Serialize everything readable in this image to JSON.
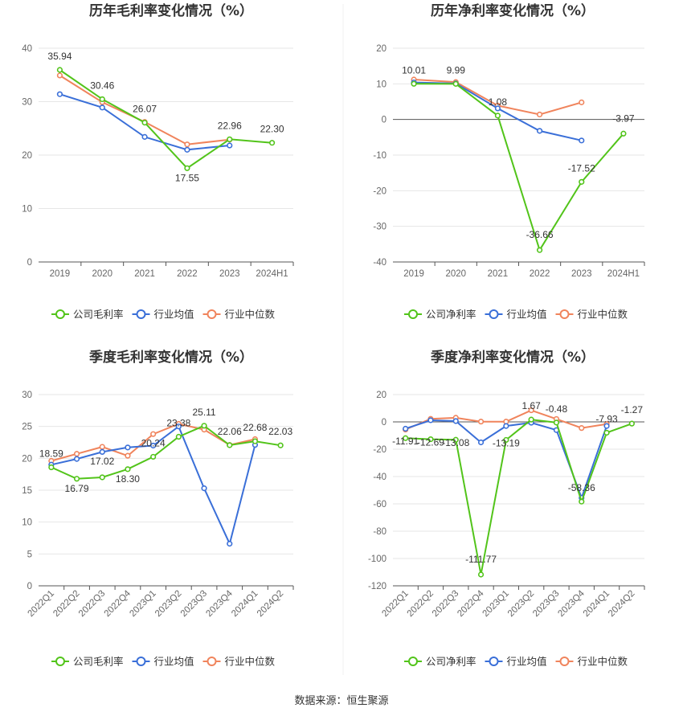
{
  "colors": {
    "company": "#52c41a",
    "industry_avg": "#3a6fd8",
    "industry_median": "#f0845c",
    "grid": "#e6e6e6",
    "axis": "#666666",
    "label": "#333333"
  },
  "legend": {
    "gross": [
      "公司毛利率",
      "行业均值",
      "行业中位数"
    ],
    "net": [
      "公司净利率",
      "行业均值",
      "行业中位数"
    ]
  },
  "source_text": "数据来源：恒生聚源",
  "chart_data": [
    {
      "type": "line",
      "title": "历年毛利率变化情况（%）",
      "categories": [
        "2019",
        "2020",
        "2021",
        "2022",
        "2023",
        "2024H1"
      ],
      "ylim": [
        0,
        40
      ],
      "yticks": [
        0,
        10,
        20,
        30,
        40
      ],
      "legend_key": "gross",
      "grid": true,
      "legend_position": "bottom",
      "series": [
        {
          "name": "公司毛利率",
          "values": [
            35.94,
            30.46,
            26.07,
            17.55,
            22.96,
            22.3
          ],
          "labels": [
            "35.94",
            "30.46",
            "26.07",
            "17.55",
            "22.96",
            "22.30"
          ]
        },
        {
          "name": "行业均值",
          "values": [
            31.4,
            28.9,
            23.4,
            21.0,
            21.8,
            null
          ]
        },
        {
          "name": "行业中位数",
          "values": [
            34.9,
            29.9,
            26.2,
            22.0,
            22.9,
            null
          ]
        }
      ]
    },
    {
      "type": "line",
      "title": "历年净利率变化情况（%）",
      "categories": [
        "2019",
        "2020",
        "2021",
        "2022",
        "2023",
        "2024H1"
      ],
      "ylim": [
        -40,
        20
      ],
      "yticks": [
        -40,
        -30,
        -20,
        -10,
        0,
        10,
        20
      ],
      "legend_key": "net",
      "grid": true,
      "legend_position": "bottom",
      "series": [
        {
          "name": "公司净利率",
          "values": [
            10.01,
            9.99,
            1.08,
            -36.66,
            -17.52,
            -3.97
          ],
          "labels": [
            "10.01",
            "9.99",
            "1.08",
            "-36.66",
            "-17.52",
            "-3.97"
          ]
        },
        {
          "name": "行业均值",
          "values": [
            10.4,
            10.1,
            3.1,
            -3.2,
            -5.9,
            null
          ]
        },
        {
          "name": "行业中位数",
          "values": [
            11.2,
            10.5,
            3.9,
            1.4,
            4.8,
            null
          ]
        }
      ]
    },
    {
      "type": "line",
      "title": "季度毛利率变化情况（%）",
      "categories": [
        "2022Q1",
        "2022Q2",
        "2022Q3",
        "2022Q4",
        "2023Q1",
        "2023Q2",
        "2023Q3",
        "2023Q4",
        "2024Q1",
        "2024Q2"
      ],
      "ylim": [
        0,
        30
      ],
      "yticks": [
        0,
        5,
        10,
        15,
        20,
        25,
        30
      ],
      "legend_key": "gross",
      "rotate_x": true,
      "grid": true,
      "legend_position": "bottom",
      "series": [
        {
          "name": "公司毛利率",
          "values": [
            18.59,
            16.79,
            17.02,
            18.3,
            20.24,
            23.38,
            25.11,
            22.06,
            22.68,
            22.03
          ],
          "labels": [
            "18.59",
            "16.79",
            "17.02",
            "18.30",
            "20.24",
            "23.38",
            "25.11",
            "22.06",
            "22.68",
            "22.03"
          ]
        },
        {
          "name": "行业均值",
          "values": [
            19.0,
            19.9,
            21.0,
            21.7,
            22.0,
            25.0,
            15.3,
            6.6,
            22.1,
            null
          ]
        },
        {
          "name": "行业中位数",
          "values": [
            19.6,
            20.7,
            21.8,
            20.4,
            23.8,
            25.4,
            24.5,
            22.1,
            23.0,
            null
          ]
        }
      ]
    },
    {
      "type": "line",
      "title": "季度净利率变化情况（%）",
      "categories": [
        "2022Q1",
        "2022Q2",
        "2022Q3",
        "2022Q4",
        "2023Q1",
        "2023Q2",
        "2023Q3",
        "2023Q4",
        "2024Q1",
        "2024Q2"
      ],
      "ylim": [
        -120,
        20
      ],
      "yticks": [
        -120,
        -100,
        -80,
        -60,
        -40,
        -20,
        0,
        20
      ],
      "legend_key": "net",
      "rotate_x": true,
      "grid": true,
      "legend_position": "bottom",
      "series": [
        {
          "name": "公司净利率",
          "values": [
            -11.91,
            -12.69,
            -13.08,
            -111.77,
            -13.19,
            1.67,
            -0.48,
            -58.36,
            -7.93,
            -1.27
          ],
          "labels": [
            "-11.91",
            "-12.69",
            "-13.08",
            "-111.77",
            "-13.19",
            "1.67",
            "-0.48",
            "-58.36",
            "-7.93",
            "-1.27"
          ]
        },
        {
          "name": "行业均值",
          "values": [
            -5.0,
            1.2,
            0.6,
            -15.0,
            -3.0,
            -0.6,
            -6.0,
            -55.6,
            -3.0,
            null
          ]
        },
        {
          "name": "行业中位数",
          "values": [
            -5.6,
            2.2,
            3.0,
            0.2,
            0.2,
            8.5,
            2.1,
            -4.5,
            -1.6,
            null
          ]
        }
      ]
    }
  ]
}
